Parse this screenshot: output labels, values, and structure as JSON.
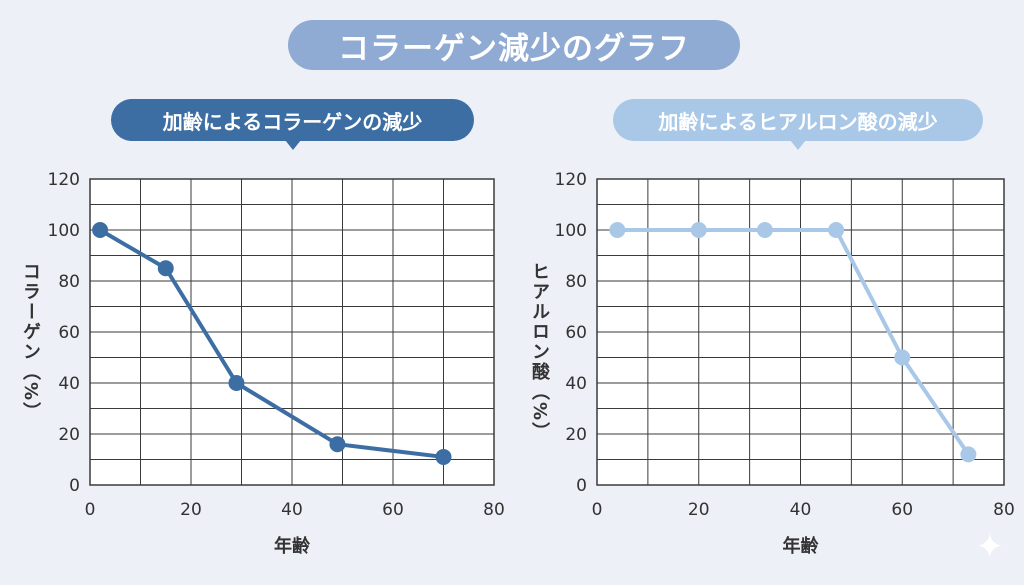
{
  "main_title": "コラーゲン減少のグラフ",
  "colors": {
    "background": "#eef0f7",
    "title_bg": "#8faad3",
    "left_series": "#3d6ea3",
    "right_series": "#a9c8e8",
    "grid": "#3a3a3a"
  },
  "chart_data": [
    {
      "type": "line",
      "title": "加齢によるコラーゲンの減少",
      "xlabel": "年齢",
      "ylabel": "コラーゲン（%）",
      "xlim": [
        0,
        80
      ],
      "ylim": [
        0,
        120
      ],
      "xticks": [
        0,
        20,
        40,
        60,
        80
      ],
      "yticks": [
        0,
        20,
        40,
        60,
        80,
        100,
        120
      ],
      "grid": true,
      "x": [
        2,
        15,
        29,
        49,
        70
      ],
      "y": [
        100,
        85,
        40,
        16,
        11
      ]
    },
    {
      "type": "line",
      "title": "加齢によるヒアルロン酸の減少",
      "xlabel": "年齢",
      "ylabel": "ヒアルロン酸（%）",
      "xlim": [
        0,
        80
      ],
      "ylim": [
        0,
        120
      ],
      "xticks": [
        0,
        20,
        40,
        60,
        80
      ],
      "yticks": [
        0,
        20,
        40,
        60,
        80,
        100,
        120
      ],
      "grid": true,
      "x": [
        4,
        20,
        33,
        47,
        60,
        73
      ],
      "y": [
        100,
        100,
        100,
        100,
        50,
        12
      ]
    }
  ]
}
